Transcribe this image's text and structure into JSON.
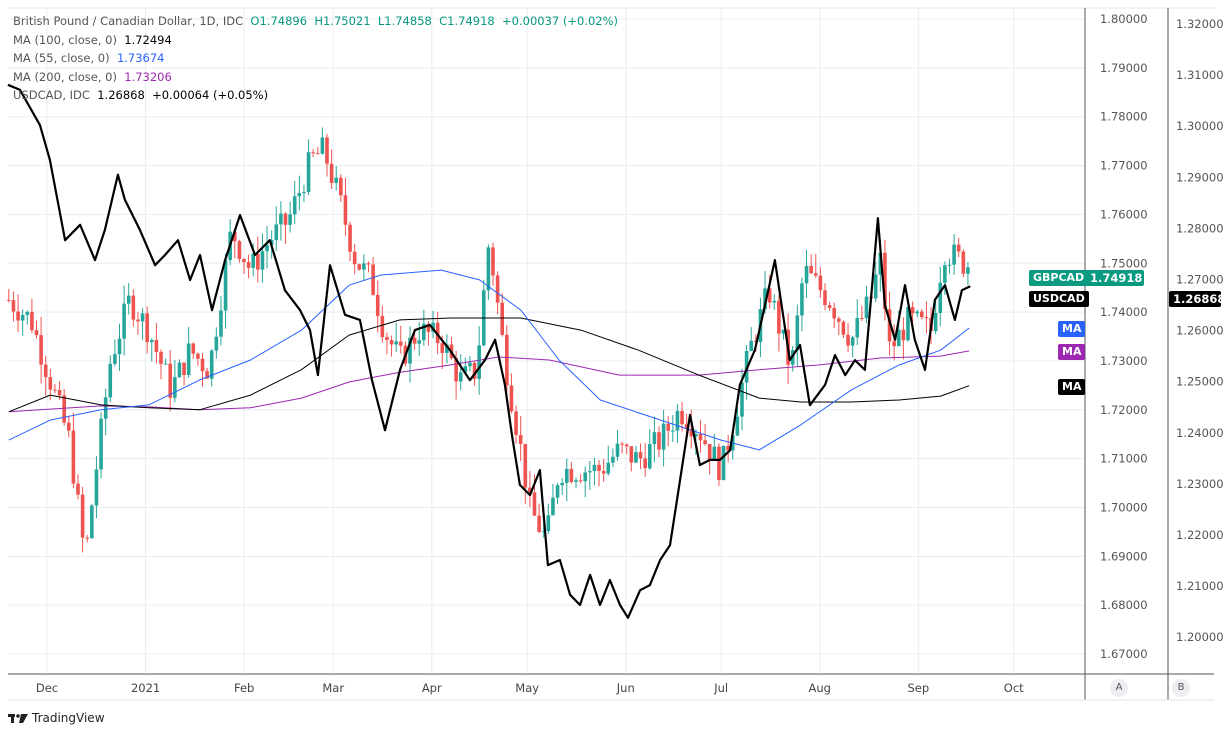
{
  "legend": {
    "title": "British Pound / Canadian Dollar, 1D, IDC",
    "open": "O1.74896",
    "high": "H1.75021",
    "low": "L1.74858",
    "close": "C1.74918",
    "change": "+0.00037 (+0.02%)",
    "ma100_label": "MA (100, close, 0)",
    "ma100_value": "1.72494",
    "ma55_label": "MA (55, close, 0)",
    "ma55_value": "1.73674",
    "ma200_label": "MA (200, close, 0)",
    "ma200_value": "1.73206",
    "usdcad_label": "USDCAD, IDC",
    "usdcad_value": "1.26868",
    "usdcad_change": "+0.00064 (+0.05%)"
  },
  "badges": {
    "gbpcad": "GBPCAD",
    "gbpcad_price": "1.74918",
    "usdcad": "USDCAD",
    "usdcad_price": "1.26868",
    "ma": "MA"
  },
  "axis_buttons": {
    "a": "A",
    "b": "B"
  },
  "brand": "TradingView",
  "colors": {
    "up": "#26a69a",
    "down": "#ef5350",
    "ma55": "#2962ff",
    "ma100": "#000000",
    "ma200": "#9c27b0",
    "usdcad": "#000000",
    "accent": "#089981"
  },
  "chart_data": {
    "type": "candlestick+line",
    "title": "British Pound / Canadian Dollar, 1D, IDC",
    "x_unit": "days since 2020-12-01",
    "x_ticks": [
      {
        "label": "Dec",
        "day": 0
      },
      {
        "label": "2021",
        "day": 31
      },
      {
        "label": "Feb",
        "day": 62
      },
      {
        "label": "Mar",
        "day": 90
      },
      {
        "label": "Apr",
        "day": 121
      },
      {
        "label": "May",
        "day": 151
      },
      {
        "label": "Jun",
        "day": 182
      },
      {
        "label": "Jul",
        "day": 212
      },
      {
        "label": "Aug",
        "day": 243
      },
      {
        "label": "Sep",
        "day": 274
      },
      {
        "label": "Oct",
        "day": 304
      }
    ],
    "y_axis_a": {
      "range": [
        1.665,
        1.8025
      ],
      "ticks": [
        "1.80000",
        "1.79000",
        "1.78000",
        "1.77000",
        "1.76000",
        "1.75000",
        "1.74000",
        "1.73000",
        "1.72000",
        "1.71000",
        "1.70000",
        "1.69000",
        "1.68000",
        "1.67000"
      ]
    },
    "y_axis_b": {
      "range": [
        1.198,
        1.3225
      ],
      "ticks": [
        "1.32000",
        "1.31000",
        "1.30000",
        "1.29000",
        "1.28000",
        "1.27000",
        "1.26000",
        "1.25000",
        "1.24000",
        "1.23000",
        "1.22000",
        "1.21000",
        "1.20000"
      ]
    },
    "gbpcad_close": [
      [
        -12,
        1.7425
      ],
      [
        -5,
        1.7384
      ],
      [
        1,
        1.7261
      ],
      [
        7,
        1.7138
      ],
      [
        12,
        1.6893
      ],
      [
        15,
        1.7056
      ],
      [
        20,
        1.7302
      ],
      [
        26,
        1.7425
      ],
      [
        32,
        1.7363
      ],
      [
        39,
        1.7241
      ],
      [
        45,
        1.7322
      ],
      [
        51,
        1.7281
      ],
      [
        58,
        1.7568
      ],
      [
        64,
        1.7486
      ],
      [
        70,
        1.7548
      ],
      [
        76,
        1.7589
      ],
      [
        83,
        1.7711
      ],
      [
        87,
        1.7732
      ],
      [
        92,
        1.7629
      ],
      [
        97,
        1.7507
      ],
      [
        102,
        1.7466
      ],
      [
        106,
        1.7363
      ],
      [
        111,
        1.7302
      ],
      [
        117,
        1.7363
      ],
      [
        124,
        1.7343
      ],
      [
        130,
        1.7261
      ],
      [
        135,
        1.7281
      ],
      [
        139,
        1.7548
      ],
      [
        144,
        1.7302
      ],
      [
        149,
        1.7118
      ],
      [
        152,
        1.6995
      ],
      [
        157,
        1.6934
      ],
      [
        161,
        1.7077
      ],
      [
        168,
        1.7077
      ],
      [
        174,
        1.7077
      ],
      [
        180,
        1.7118
      ],
      [
        186,
        1.7097
      ],
      [
        193,
        1.7138
      ],
      [
        199,
        1.72
      ],
      [
        205,
        1.7159
      ],
      [
        212,
        1.7077
      ],
      [
        216,
        1.7179
      ],
      [
        221,
        1.7322
      ],
      [
        227,
        1.7445
      ],
      [
        234,
        1.7281
      ],
      [
        238,
        1.7486
      ],
      [
        246,
        1.7425
      ],
      [
        253,
        1.7343
      ],
      [
        259,
        1.7425
      ],
      [
        262,
        1.7507
      ],
      [
        265,
        1.7322
      ],
      [
        271,
        1.7384
      ],
      [
        278,
        1.7363
      ],
      [
        282,
        1.7527
      ],
      [
        287,
        1.7507
      ],
      [
        290,
        1.74918
      ]
    ],
    "usdcad": [
      [
        -12.3,
        1.3081
      ],
      [
        -8.5,
        1.3071
      ],
      [
        -2.2,
        1.3002
      ],
      [
        0.9,
        1.2934
      ],
      [
        5.7,
        1.2777
      ],
      [
        10.4,
        1.2807
      ],
      [
        15.1,
        1.2738
      ],
      [
        18.2,
        1.2797
      ],
      [
        22.3,
        1.2905
      ],
      [
        24.5,
        1.2856
      ],
      [
        29.2,
        1.2797
      ],
      [
        34,
        1.2728
      ],
      [
        37.1,
        1.2748
      ],
      [
        41.2,
        1.2777
      ],
      [
        45,
        1.2699
      ],
      [
        48.1,
        1.2748
      ],
      [
        51.9,
        1.264
      ],
      [
        56,
        1.2738
      ],
      [
        60.7,
        1.2826
      ],
      [
        65.4,
        1.2748
      ],
      [
        70.1,
        1.2777
      ],
      [
        74.8,
        1.2679
      ],
      [
        79.6,
        1.264
      ],
      [
        82.7,
        1.2601
      ],
      [
        85.2,
        1.2513
      ],
      [
        89,
        1.2728
      ],
      [
        93.7,
        1.2631
      ],
      [
        98.4,
        1.2621
      ],
      [
        102.2,
        1.2503
      ],
      [
        106.3,
        1.2405
      ],
      [
        111,
        1.2523
      ],
      [
        115.7,
        1.2601
      ],
      [
        120.4,
        1.2611
      ],
      [
        126.7,
        1.2562
      ],
      [
        133,
        1.2503
      ],
      [
        137.7,
        1.2542
      ],
      [
        140.9,
        1.2582
      ],
      [
        144,
        1.2494
      ],
      [
        146.2,
        1.2396
      ],
      [
        148.7,
        1.2298
      ],
      [
        151.9,
        1.2278
      ],
      [
        155,
        1.2327
      ],
      [
        157.5,
        1.2141
      ],
      [
        161.3,
        1.2151
      ],
      [
        164.5,
        1.2083
      ],
      [
        167.6,
        1.2063
      ],
      [
        170.8,
        1.2122
      ],
      [
        173.9,
        1.2063
      ],
      [
        177,
        1.2112
      ],
      [
        180.2,
        1.2063
      ],
      [
        182.7,
        1.2038
      ],
      [
        186.5,
        1.2092
      ],
      [
        189.6,
        1.2102
      ],
      [
        192.8,
        1.2151
      ],
      [
        195.9,
        1.218
      ],
      [
        199.1,
        1.2308
      ],
      [
        202.2,
        1.2435
      ],
      [
        205.3,
        1.2337
      ],
      [
        208.5,
        1.2347
      ],
      [
        211.6,
        1.2347
      ],
      [
        214.8,
        1.2366
      ],
      [
        217.9,
        1.2494
      ],
      [
        222.6,
        1.2562
      ],
      [
        225.8,
        1.265
      ],
      [
        228.9,
        1.2738
      ],
      [
        233.6,
        1.2542
      ],
      [
        236.8,
        1.2572
      ],
      [
        239.9,
        1.2454
      ],
      [
        244.7,
        1.2494
      ],
      [
        247.8,
        1.2552
      ],
      [
        251,
        1.2513
      ],
      [
        254.1,
        1.2542
      ],
      [
        257.2,
        1.2523
      ],
      [
        261.3,
        1.282
      ],
      [
        263.5,
        1.265
      ],
      [
        266.7,
        1.2582
      ],
      [
        269.8,
        1.2689
      ],
      [
        272.9,
        1.2582
      ],
      [
        276.1,
        1.2523
      ],
      [
        279.2,
        1.266
      ],
      [
        282.4,
        1.2689
      ],
      [
        285.5,
        1.2621
      ],
      [
        287.7,
        1.2679
      ],
      [
        290.3,
        1.26868
      ]
    ],
    "ma55": [
      [
        -12,
        1.7138
      ],
      [
        1,
        1.7179
      ],
      [
        17,
        1.72
      ],
      [
        32,
        1.721
      ],
      [
        48,
        1.7261
      ],
      [
        64,
        1.7302
      ],
      [
        80,
        1.7363
      ],
      [
        95,
        1.7455
      ],
      [
        105,
        1.7476
      ],
      [
        124,
        1.7486
      ],
      [
        136,
        1.7466
      ],
      [
        149,
        1.7404
      ],
      [
        161,
        1.7302
      ],
      [
        174,
        1.722
      ],
      [
        193,
        1.7179
      ],
      [
        212,
        1.7138
      ],
      [
        224,
        1.7118
      ],
      [
        237,
        1.7169
      ],
      [
        253,
        1.7241
      ],
      [
        268,
        1.7292
      ],
      [
        281,
        1.7322
      ],
      [
        290,
        1.73674
      ]
    ],
    "ma100": [
      [
        -12,
        1.7196
      ],
      [
        1,
        1.723
      ],
      [
        17,
        1.721
      ],
      [
        32,
        1.7204
      ],
      [
        48,
        1.72
      ],
      [
        64,
        1.723
      ],
      [
        80,
        1.7282
      ],
      [
        95,
        1.7353
      ],
      [
        111,
        1.7384
      ],
      [
        127,
        1.7388
      ],
      [
        149,
        1.7388
      ],
      [
        168,
        1.7363
      ],
      [
        186,
        1.7322
      ],
      [
        205,
        1.7271
      ],
      [
        224,
        1.7224
      ],
      [
        237,
        1.7216
      ],
      [
        253,
        1.7216
      ],
      [
        268,
        1.722
      ],
      [
        281,
        1.7228
      ],
      [
        290,
        1.72494
      ]
    ],
    "ma200": [
      [
        -12,
        1.7196
      ],
      [
        17,
        1.7208
      ],
      [
        32,
        1.7206
      ],
      [
        48,
        1.72
      ],
      [
        64,
        1.7204
      ],
      [
        80,
        1.7224
      ],
      [
        95,
        1.7257
      ],
      [
        111,
        1.7277
      ],
      [
        127,
        1.7292
      ],
      [
        142,
        1.7308
      ],
      [
        158,
        1.7302
      ],
      [
        180,
        1.7271
      ],
      [
        205,
        1.7271
      ],
      [
        224,
        1.7282
      ],
      [
        243,
        1.7292
      ],
      [
        262,
        1.7306
      ],
      [
        281,
        1.731
      ],
      [
        290,
        1.73206
      ]
    ]
  }
}
